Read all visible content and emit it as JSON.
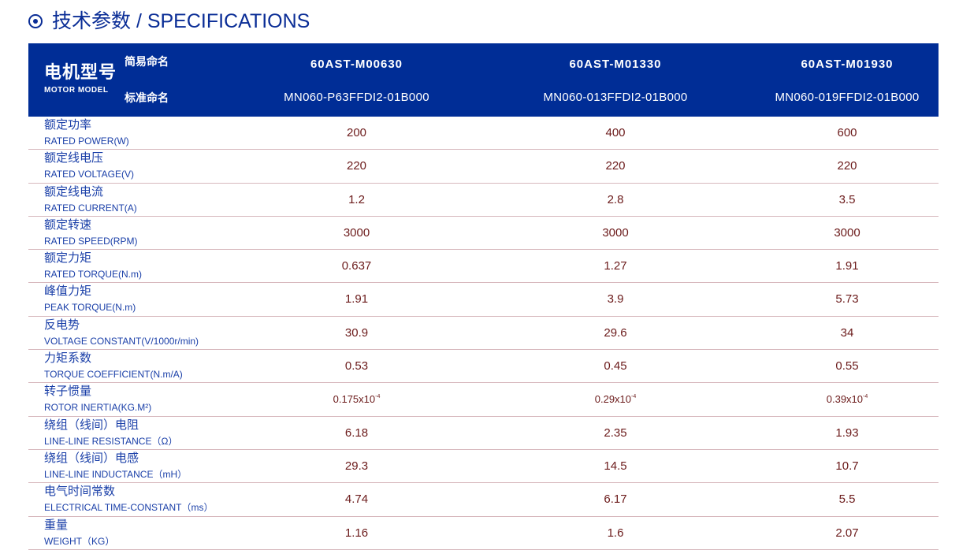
{
  "title": "技术参数 / SPECIFICATIONS",
  "header": {
    "model_cn": "电机型号",
    "model_en": "MOTOR MODEL",
    "short_label": "简易命名",
    "std_label": "标准命名",
    "models": [
      {
        "short": "60AST-M00630",
        "std": "MN060-P63FFDI2-01B000"
      },
      {
        "short": "60AST-M01330",
        "std": "MN060-013FFDI2-01B000"
      },
      {
        "short": "60AST-M01930",
        "std": "MN060-019FFDI2-01B000"
      }
    ]
  },
  "rows": [
    {
      "cn": "额定功率",
      "en": "RATED POWER(W)",
      "values": [
        "200",
        "400",
        "600"
      ]
    },
    {
      "cn": "额定线电压",
      "en": "RATED VOLTAGE(V)",
      "values": [
        "220",
        "220",
        "220"
      ]
    },
    {
      "cn": "额定线电流",
      "en": "RATED CURRENT(A)",
      "values": [
        "1.2",
        "2.8",
        "3.5"
      ]
    },
    {
      "cn": "额定转速",
      "en": "RATED SPEED(RPM)",
      "values": [
        "3000",
        "3000",
        "3000"
      ]
    },
    {
      "cn": "额定力矩",
      "en": "RATED TORQUE(N.m)",
      "values": [
        "0.637",
        "1.27",
        "1.91"
      ]
    },
    {
      "cn": "峰值力矩",
      "en": "PEAK TORQUE(N.m)",
      "values": [
        "1.91",
        "3.9",
        "5.73"
      ]
    },
    {
      "cn": "反电势",
      "en": "VOLTAGE CONSTANT(V/1000r/min)",
      "values": [
        "30.9",
        "29.6",
        "34"
      ]
    },
    {
      "cn": "力矩系数",
      "en": "TORQUE COEFFICIENT(N.m/A)",
      "values": [
        "0.53",
        "0.45",
        "0.55"
      ]
    },
    {
      "cn": "转子惯量",
      "en": "ROTOR INERTIA(KG.M²)",
      "values": [
        "0.175x10",
        "0.29x10",
        "0.39x10"
      ],
      "exp": "-4"
    },
    {
      "cn": "绕组（线间）电阻",
      "en": "LINE-LINE RESISTANCE（Ω）",
      "values": [
        "6.18",
        "2.35",
        "1.93"
      ]
    },
    {
      "cn": "绕组（线间）电感",
      "en": "LINE-LINE INDUCTANCE（mH）",
      "values": [
        "29.3",
        "14.5",
        "10.7"
      ]
    },
    {
      "cn": "电气时间常数",
      "en": "ELECTRICAL TIME-CONSTANT（ms）",
      "values": [
        "4.74",
        "6.17",
        "5.5"
      ]
    },
    {
      "cn": "重量",
      "en": "WEIGHT（KG）",
      "values": [
        "1.16",
        "1.6",
        "2.07"
      ]
    }
  ]
}
